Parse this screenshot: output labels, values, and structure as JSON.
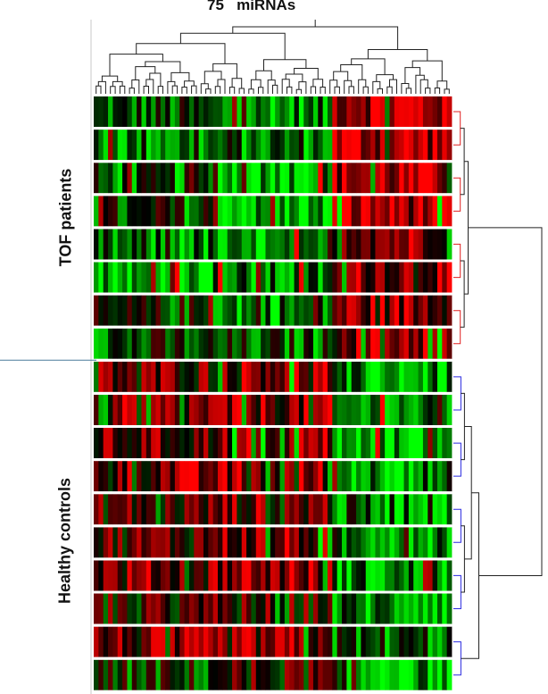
{
  "chart_data": {
    "type": "heatmap",
    "title": "75   miRNAs",
    "n_columns": 75,
    "colormap": {
      "low": "#00ff00",
      "mid": "#000000",
      "high": "#ff0000"
    },
    "groups": [
      {
        "name": "TOF patients",
        "n_rows": 8,
        "color": "#e02020"
      },
      {
        "name": "Healthy controls",
        "n_rows": 10,
        "color": "#2a2ae0"
      }
    ],
    "row_profile": [
      {
        "group": "TOF patients",
        "left": -0.35,
        "middle": -0.55,
        "right": 0.75
      },
      {
        "group": "TOF patients",
        "left": -0.45,
        "middle": -0.4,
        "right": 0.7
      },
      {
        "group": "TOF patients",
        "left": -0.4,
        "middle": -0.6,
        "right": 0.65
      },
      {
        "group": "TOF patients",
        "left": -0.3,
        "middle": -0.7,
        "right": 0.7
      },
      {
        "group": "TOF patients",
        "left": -0.5,
        "middle": -0.75,
        "right": 0.6
      },
      {
        "group": "TOF patients",
        "left": -0.7,
        "middle": -0.55,
        "right": 0.55
      },
      {
        "group": "TOF patients",
        "left": -0.2,
        "middle": -0.45,
        "right": 0.5
      },
      {
        "group": "TOF patients",
        "left": -0.25,
        "middle": -0.35,
        "right": 0.65
      },
      {
        "group": "Healthy controls",
        "left": 0.35,
        "middle": 0.6,
        "right": -0.65
      },
      {
        "group": "Healthy controls",
        "left": 0.4,
        "middle": 0.45,
        "right": -0.55
      },
      {
        "group": "Healthy controls",
        "left": 0.3,
        "middle": 0.55,
        "right": -0.75
      },
      {
        "group": "Healthy controls",
        "left": 0.45,
        "middle": 0.5,
        "right": -0.5
      },
      {
        "group": "Healthy controls",
        "left": 0.25,
        "middle": 0.4,
        "right": -0.45
      },
      {
        "group": "Healthy controls",
        "left": 0.3,
        "middle": 0.45,
        "right": -0.4
      },
      {
        "group": "Healthy controls",
        "left": 0.4,
        "middle": 0.55,
        "right": -0.55
      },
      {
        "group": "Healthy controls",
        "left": 0.1,
        "middle": 0.2,
        "right": -0.5
      },
      {
        "group": "Healthy controls",
        "left": 0.35,
        "middle": 0.4,
        "right": -0.35
      },
      {
        "group": "Healthy controls",
        "left": -0.2,
        "middle": 0.15,
        "right": -0.7
      }
    ]
  }
}
